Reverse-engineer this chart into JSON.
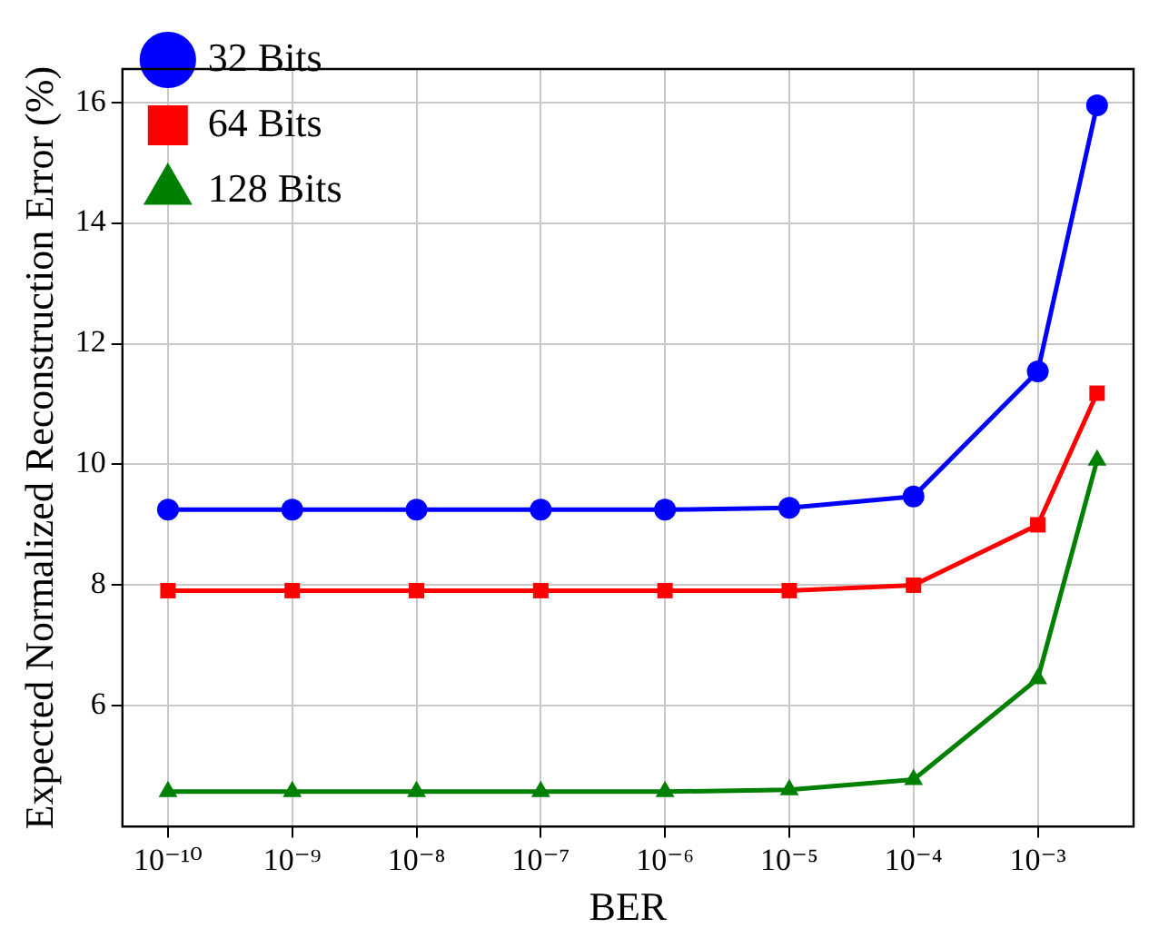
{
  "chart_data": {
    "type": "line",
    "xlabel": "BER",
    "ylabel": "Expected Normalized Reconstruction Error (%)",
    "x": [
      1e-10,
      1e-09,
      1e-08,
      1e-07,
      1e-06,
      1e-05,
      0.0001,
      0.001,
      0.003
    ],
    "series": [
      {
        "name": "32 Bits",
        "color": "#0000ff",
        "marker": "circle",
        "values": [
          9.25,
          9.25,
          9.25,
          9.25,
          9.25,
          9.28,
          9.47,
          11.54,
          15.95
        ]
      },
      {
        "name": "64 Bits",
        "color": "#ff0000",
        "marker": "square",
        "values": [
          7.91,
          7.91,
          7.91,
          7.91,
          7.91,
          7.91,
          8.0,
          9.0,
          11.18
        ]
      },
      {
        "name": "128 Bits",
        "color": "#008000",
        "marker": "triangle",
        "values": [
          4.58,
          4.58,
          4.58,
          4.58,
          4.58,
          4.61,
          4.78,
          6.45,
          10.07
        ]
      }
    ],
    "log": "x",
    "xlim": [
      4.3e-11,
      0.0059
    ],
    "xticks": [
      {
        "value": 1e-10,
        "label": "10⁻¹⁰"
      },
      {
        "value": 1e-09,
        "label": "10⁻⁹"
      },
      {
        "value": 1e-08,
        "label": "10⁻⁸"
      },
      {
        "value": 1e-07,
        "label": "10⁻⁷"
      },
      {
        "value": 1e-06,
        "label": "10⁻⁶"
      },
      {
        "value": 1e-05,
        "label": "10⁻⁵"
      },
      {
        "value": 0.0001,
        "label": "10⁻⁴"
      },
      {
        "value": 0.001,
        "label": "10⁻³"
      }
    ],
    "ylim": [
      4.0,
      16.55
    ],
    "yticks": [
      6,
      8,
      10,
      12,
      14,
      16
    ],
    "grid": true,
    "legend": "top left",
    "line_style": "solid"
  }
}
